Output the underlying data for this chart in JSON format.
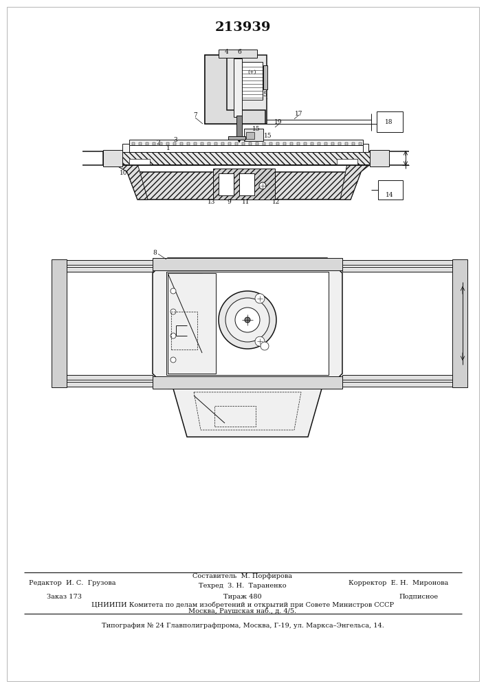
{
  "title": "213939",
  "title_fontsize": 13,
  "title_fontweight": "bold",
  "bg_color": "#ffffff",
  "footer_line1_left": "Редактор  И. С.  Грузова",
  "footer_line1_center_top": "Составитель  М. Порфирова",
  "footer_line1_center_bot": "Техред  З. Н.  Тараненко",
  "footer_line1_right": "Корректор  Е. Н.  Миронова",
  "footer_line2_left": "Заказ 173",
  "footer_line2_center": "Тираж 480",
  "footer_line2_right": "Подписное",
  "footer_line3": "ЦНИИПИ Комитета по делам изобретений и открытий при Совете Министров СССР",
  "footer_line4": "Москва, Раушская наб., д. 4/5.",
  "footer_line5": "Типография № 24 Главполиграфпрома, Москва, Г-19, ул. Маркса–Энгельса, 14.",
  "fig_width": 7.07,
  "fig_height": 10.0,
  "dpi": 100
}
